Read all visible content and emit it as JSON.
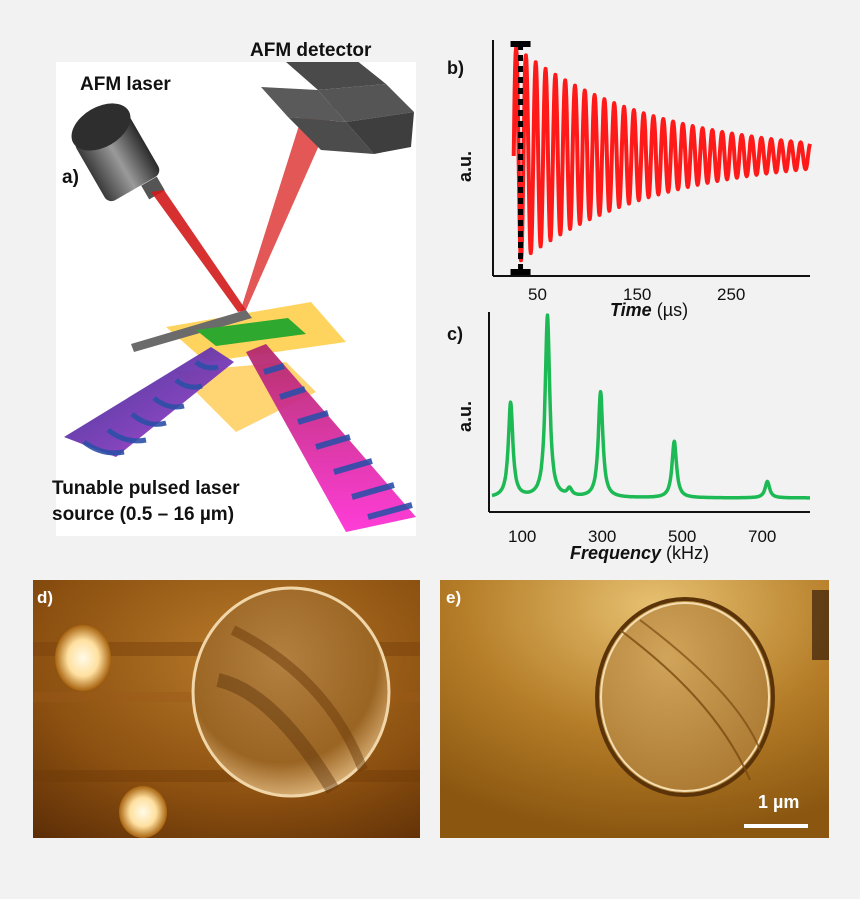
{
  "panel_a": {
    "label": "a)",
    "laser_label": "AFM laser",
    "detector_label": "AFM detector",
    "source_line1": "Tunable pulsed laser",
    "source_line2": "source (0.5 – 16 µm)"
  },
  "panel_b": {
    "label": "b)",
    "ylabel": "a.u.",
    "xlabel_italic": "Time",
    "xlabel_unit": "(µs)",
    "x_ticks": [
      "50",
      "150",
      "250"
    ],
    "colors": {
      "signal": "#ff1a1a",
      "marker": "#000000"
    }
  },
  "panel_c": {
    "label": "c)",
    "ylabel": "a.u.",
    "xlabel_italic": "Frequency",
    "xlabel_unit": "(kHz)",
    "x_ticks": [
      "100",
      "300",
      "500",
      "700"
    ],
    "colors": {
      "spectrum": "#1db954"
    }
  },
  "panel_d": {
    "label": "d)"
  },
  "panel_e": {
    "label": "e)",
    "scalebar": "1 µm"
  },
  "chart_data": [
    {
      "type": "line",
      "panel": "b",
      "description_series": "decaying oscillation",
      "xlim": [
        0,
        320
      ],
      "x_ticks": [
        50,
        150,
        250
      ],
      "peak_period_us": 10,
      "initial_amplitude": 1.0,
      "decay_time_us": 140,
      "marker_time_us": 25
    },
    {
      "type": "line",
      "panel": "c",
      "xlim": [
        0,
        820
      ],
      "x_ticks": [
        100,
        300,
        500,
        700
      ],
      "peaks": [
        {
          "x": 48,
          "y": 0.52
        },
        {
          "x": 143,
          "y": 1.0
        },
        {
          "x": 200,
          "y": 0.04
        },
        {
          "x": 280,
          "y": 0.58
        },
        {
          "x": 470,
          "y": 0.31
        },
        {
          "x": 710,
          "y": 0.09
        }
      ]
    }
  ]
}
